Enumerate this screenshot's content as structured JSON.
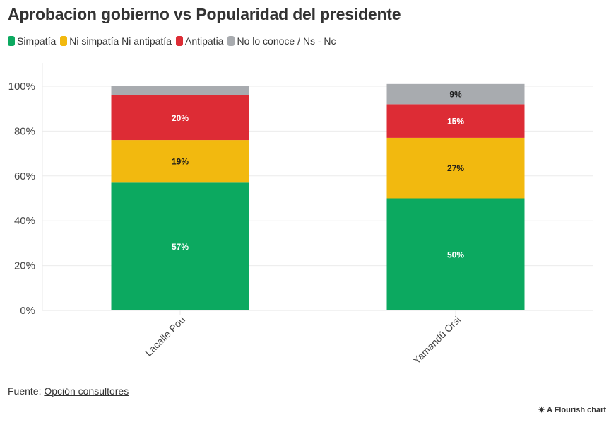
{
  "chart_data": {
    "type": "bar",
    "stacked": true,
    "title": "Aprobacion gobierno vs Popularidad del presidente",
    "xlabel": "",
    "ylabel": "",
    "categories": [
      "Lacalle Pou",
      "Yamandú Orsi"
    ],
    "series": [
      {
        "name": "Simpatía",
        "color": "#0ca960",
        "values": [
          57,
          50
        ],
        "labels": [
          "57%",
          "50%"
        ],
        "label_color": "#ffffff"
      },
      {
        "name": "Ni simpatía Ni antipatía",
        "color": "#f2b90f",
        "values": [
          19,
          27
        ],
        "labels": [
          "19%",
          "27%"
        ],
        "label_color": "#1a1a1a"
      },
      {
        "name": "Antipatia",
        "color": "#dd2c35",
        "values": [
          20,
          15
        ],
        "labels": [
          "20%",
          "15%"
        ],
        "label_color": "#ffffff"
      },
      {
        "name": "No lo conoce / Ns - Nc",
        "color": "#a8abaf",
        "values": [
          4,
          9
        ],
        "labels": [
          "",
          "9%"
        ],
        "label_color": "#1a1a1a"
      }
    ],
    "yticks": [
      0,
      20,
      40,
      60,
      80,
      100
    ],
    "ytick_labels": [
      "0%",
      "20%",
      "40%",
      "60%",
      "80%",
      "100%"
    ],
    "ylim": [
      0,
      100
    ],
    "grid": true,
    "legend_position": "top-left"
  },
  "footer": {
    "source_prefix": "Fuente: ",
    "source_link": "Opción consultores",
    "credit": "A Flourish chart",
    "credit_icon": "flourish-star-icon"
  }
}
